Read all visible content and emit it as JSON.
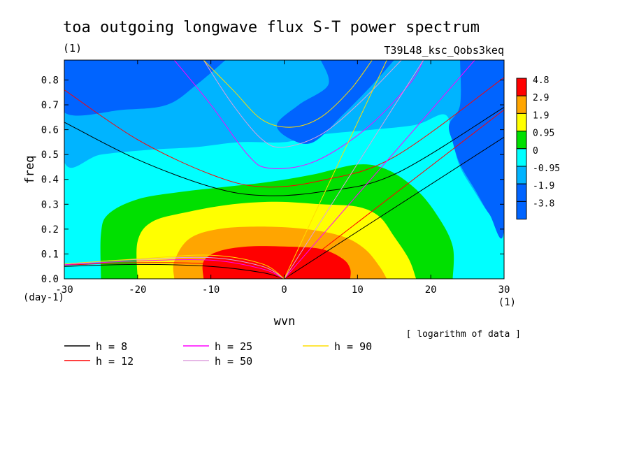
{
  "chart_data": {
    "type": "heatmap",
    "title": "toa outgoing longwave flux S-T power spectrum",
    "subtitle_left": "(1)",
    "subtitle_right": "T39L48_ksc_Qobs3keq",
    "xlabel": "wvn",
    "ylabel": "freq",
    "x_unit": "(1)",
    "y_unit": "(day-1)",
    "note": "[ logarithm of data ]",
    "xlim": [
      -30,
      30
    ],
    "ylim": [
      0,
      0.88
    ],
    "xticks": [
      "-30",
      "-20",
      "-10",
      "0",
      "10",
      "20",
      "30"
    ],
    "yticks": [
      "0.0",
      "0.1",
      "0.2",
      "0.3",
      "0.4",
      "0.5",
      "0.6",
      "0.7",
      "0.8"
    ],
    "levels": [
      "4.8",
      "2.9",
      "1.9",
      "0.95",
      "0",
      "-0.95",
      "-1.9",
      "-3.8"
    ],
    "colors": {
      "lvl_4_8": "#ff0000",
      "lvl_2_9": "#ffa500",
      "lvl_1_9": "#ffff00",
      "lvl_0_95": "#00e000",
      "lvl_0": "#00ffff",
      "lvl_m0_95": "#00b4ff",
      "lvl_m1_9": "#0064ff",
      "bg": "#00ffff"
    },
    "regions": [
      {
        "level": "-0.95",
        "points": [
          [
            -30,
            0.88
          ],
          [
            -30,
            0.47
          ],
          [
            -25,
            0.5
          ],
          [
            -18,
            0.52
          ],
          [
            -12,
            0.53
          ],
          [
            -6,
            0.55
          ],
          [
            0,
            0.55
          ],
          [
            5,
            0.58
          ],
          [
            12,
            0.6
          ],
          [
            18,
            0.62
          ],
          [
            22,
            0.66
          ],
          [
            23,
            0.55
          ],
          [
            24,
            0.45
          ],
          [
            26,
            0.35
          ],
          [
            28,
            0.26
          ],
          [
            30,
            0.2
          ],
          [
            30,
            0.88
          ]
        ]
      },
      {
        "level": "-1.9",
        "points": [
          [
            -30,
            0.88
          ],
          [
            -30,
            0.67
          ],
          [
            -22,
            0.68
          ],
          [
            -16,
            0.7
          ],
          [
            -12,
            0.78
          ],
          [
            -8,
            0.88
          ]
        ]
      },
      {
        "level": "-1.9",
        "points": [
          [
            5,
            0.88
          ],
          [
            6,
            0.78
          ],
          [
            2,
            0.7
          ],
          [
            -1,
            0.62
          ],
          [
            1,
            0.56
          ],
          [
            4,
            0.55
          ],
          [
            8,
            0.66
          ],
          [
            12,
            0.78
          ],
          [
            15,
            0.88
          ]
        ]
      },
      {
        "level": "-1.9",
        "points": [
          [
            24,
            0.88
          ],
          [
            24,
            0.7
          ],
          [
            22.5,
            0.62
          ],
          [
            23,
            0.55
          ],
          [
            24,
            0.46
          ],
          [
            26,
            0.36
          ],
          [
            28,
            0.26
          ],
          [
            30,
            0.2
          ],
          [
            30,
            0.88
          ]
        ]
      },
      {
        "level": "0.95",
        "points": [
          [
            -25,
            0.0
          ],
          [
            -25,
            0.18
          ],
          [
            -24,
            0.26
          ],
          [
            -20,
            0.32
          ],
          [
            -14,
            0.35
          ],
          [
            -8,
            0.37
          ],
          [
            -2,
            0.39
          ],
          [
            4,
            0.42
          ],
          [
            10,
            0.46
          ],
          [
            14,
            0.44
          ],
          [
            18,
            0.36
          ],
          [
            21,
            0.25
          ],
          [
            23,
            0.13
          ],
          [
            23,
            0.0
          ]
        ]
      },
      {
        "level": "1.9",
        "points": [
          [
            -20,
            0.0
          ],
          [
            -20,
            0.15
          ],
          [
            -18,
            0.23
          ],
          [
            -13,
            0.27
          ],
          [
            -7,
            0.3
          ],
          [
            -1,
            0.31
          ],
          [
            5,
            0.3
          ],
          [
            10,
            0.29
          ],
          [
            13,
            0.25
          ],
          [
            15,
            0.17
          ],
          [
            17,
            0.08
          ],
          [
            18,
            0.0
          ]
        ]
      },
      {
        "level": "2.9",
        "points": [
          [
            -15,
            0.0
          ],
          [
            -15,
            0.07
          ],
          [
            -13,
            0.16
          ],
          [
            -9,
            0.2
          ],
          [
            -3,
            0.21
          ],
          [
            3,
            0.2
          ],
          [
            8,
            0.17
          ],
          [
            11,
            0.12
          ],
          [
            13,
            0.05
          ],
          [
            14,
            0.0
          ]
        ]
      },
      {
        "level": "4.8",
        "points": [
          [
            -11,
            0.0
          ],
          [
            -11,
            0.07
          ],
          [
            -9,
            0.11
          ],
          [
            -5,
            0.13
          ],
          [
            0,
            0.13
          ],
          [
            5,
            0.12
          ],
          [
            8,
            0.08
          ],
          [
            9,
            0.04
          ],
          [
            9,
            0.0
          ]
        ]
      }
    ],
    "series": [
      {
        "name": "h = 8",
        "value": "8",
        "color": "#000000"
      },
      {
        "name": "h = 12",
        "value": "12",
        "color": "#ff0000"
      },
      {
        "name": "h = 25",
        "value": "25",
        "color": "#ff00ff"
      },
      {
        "name": "h = 50",
        "value": "50",
        "color": "#dda0dd"
      },
      {
        "name": "h = 90",
        "value": "90",
        "color": "#ffdd00"
      }
    ],
    "dispersion_curves": [
      {
        "h": "8",
        "kind": "kelvin",
        "points": [
          [
            0,
            0
          ],
          [
            30,
            0.57
          ]
        ]
      },
      {
        "h": "8",
        "kind": "rossby",
        "points": [
          [
            -30,
            0.05
          ],
          [
            -20,
            0.058
          ],
          [
            -10,
            0.05
          ],
          [
            -3,
            0.025
          ],
          [
            0,
            0
          ]
        ]
      },
      {
        "h": "8",
        "kind": "ig",
        "points": [
          [
            -30,
            0.63
          ],
          [
            -20,
            0.48
          ],
          [
            -10,
            0.37
          ],
          [
            -3,
            0.335
          ],
          [
            5,
            0.35
          ],
          [
            15,
            0.42
          ],
          [
            30,
            0.69
          ]
        ]
      },
      {
        "h": "12",
        "kind": "kelvin",
        "points": [
          [
            0,
            0
          ],
          [
            30,
            0.68
          ]
        ]
      },
      {
        "h": "12",
        "kind": "rossby",
        "points": [
          [
            -30,
            0.055
          ],
          [
            -20,
            0.065
          ],
          [
            -10,
            0.06
          ],
          [
            -3,
            0.03
          ],
          [
            0,
            0
          ]
        ]
      },
      {
        "h": "12",
        "kind": "ig",
        "points": [
          [
            -30,
            0.76
          ],
          [
            -20,
            0.56
          ],
          [
            -10,
            0.42
          ],
          [
            -3,
            0.37
          ],
          [
            5,
            0.395
          ],
          [
            15,
            0.49
          ],
          [
            30,
            0.81
          ]
        ]
      },
      {
        "h": "25",
        "kind": "kelvin",
        "points": [
          [
            0,
            0
          ],
          [
            26,
            0.88
          ]
        ]
      },
      {
        "h": "25",
        "kind": "rossby",
        "points": [
          [
            -30,
            0.057
          ],
          [
            -20,
            0.072
          ],
          [
            -10,
            0.075
          ],
          [
            -3,
            0.04
          ],
          [
            0,
            0
          ]
        ]
      },
      {
        "h": "25",
        "kind": "ig",
        "points": [
          [
            -15,
            0.88
          ],
          [
            -10,
            0.7
          ],
          [
            -5,
            0.5
          ],
          [
            -2,
            0.445
          ],
          [
            4,
            0.47
          ],
          [
            11,
            0.6
          ],
          [
            17,
            0.78
          ],
          [
            19,
            0.88
          ]
        ]
      },
      {
        "h": "50",
        "kind": "kelvin",
        "points": [
          [
            0,
            0
          ],
          [
            19,
            0.88
          ]
        ]
      },
      {
        "h": "50",
        "kind": "rossby",
        "points": [
          [
            -30,
            0.06
          ],
          [
            -20,
            0.078
          ],
          [
            -10,
            0.085
          ],
          [
            -3,
            0.05
          ],
          [
            0,
            0
          ]
        ]
      },
      {
        "h": "50",
        "kind": "ig",
        "points": [
          [
            -11,
            0.88
          ],
          [
            -7,
            0.7
          ],
          [
            -3,
            0.56
          ],
          [
            0,
            0.53
          ],
          [
            5,
            0.58
          ],
          [
            10,
            0.7
          ],
          [
            16,
            0.88
          ]
        ]
      },
      {
        "h": "90",
        "kind": "kelvin",
        "points": [
          [
            0,
            0
          ],
          [
            14,
            0.88
          ]
        ]
      },
      {
        "h": "90",
        "kind": "rossby",
        "points": [
          [
            -30,
            0.06
          ],
          [
            -20,
            0.08
          ],
          [
            -10,
            0.095
          ],
          [
            -3,
            0.06
          ],
          [
            0,
            0
          ]
        ]
      },
      {
        "h": "90",
        "kind": "ig",
        "points": [
          [
            -11,
            0.88
          ],
          [
            -7,
            0.76
          ],
          [
            -3,
            0.64
          ],
          [
            1,
            0.61
          ],
          [
            5,
            0.65
          ],
          [
            9,
            0.76
          ],
          [
            12,
            0.88
          ]
        ]
      }
    ]
  }
}
